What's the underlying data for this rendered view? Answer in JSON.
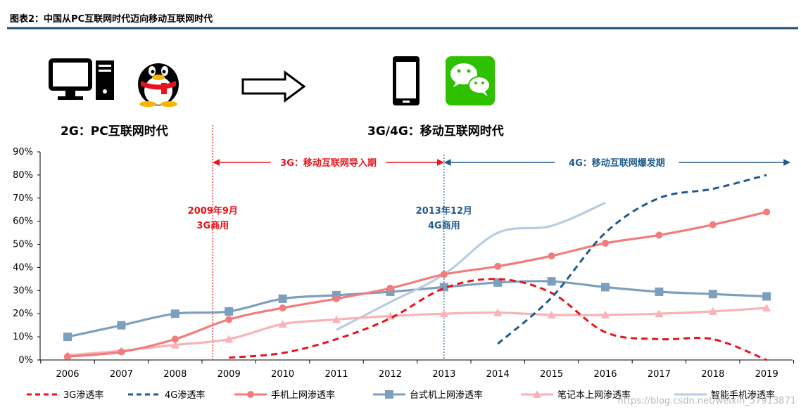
{
  "figure": {
    "title": "图表2：中国从PC互联网时代迈向移动互联网时代",
    "era_left_label": "2G：PC互联网时代",
    "era_right_label": "3G/4G：移动互联网时代",
    "icons": [
      "desktop-computer-icon",
      "qq-penguin-icon",
      "right-arrow-icon",
      "smartphone-icon",
      "wechat-icon"
    ],
    "watermark": "https://blog.csdn.net/weixin_57913871"
  },
  "colors": {
    "red": "#e8141c",
    "navy": "#1f5a8e",
    "salmon": "#f27c7c",
    "steel": "#7d9fbe",
    "pink": "#f9b3b6",
    "lightblue": "#b8cde0",
    "wechat_green": "#2dc100"
  },
  "chart_data": {
    "type": "line",
    "x": [
      "2006",
      "2007",
      "2008",
      "2009",
      "2010",
      "2011",
      "2012",
      "2013",
      "2014",
      "2015",
      "2016",
      "2017",
      "2018",
      "2019"
    ],
    "yticks": [
      "0%",
      "10%",
      "20%",
      "30%",
      "40%",
      "50%",
      "60%",
      "70%",
      "80%",
      "90%"
    ],
    "ylim": [
      0,
      90
    ],
    "grid": false,
    "legend_position": "bottom",
    "series": [
      {
        "name": "3G渗透率",
        "style": "dashed",
        "color": "#e8141c",
        "values": [
          null,
          null,
          null,
          1,
          3,
          9,
          18,
          31,
          35,
          29,
          12,
          9,
          9,
          0
        ]
      },
      {
        "name": "4G渗透率",
        "style": "dashed",
        "color": "#1f5a8e",
        "values": [
          null,
          null,
          null,
          null,
          null,
          null,
          null,
          null,
          7,
          27,
          55,
          70,
          74,
          80
        ]
      },
      {
        "name": "手机上网渗透率",
        "style": "solid",
        "marker": "circle",
        "color": "#f27c7c",
        "values": [
          1.5,
          3.5,
          9,
          17.5,
          22.5,
          26.5,
          31,
          37,
          40.5,
          45,
          50.5,
          54,
          58.5,
          64
        ]
      },
      {
        "name": "台式机上网渗透率",
        "style": "solid",
        "marker": "square",
        "color": "#7d9fbe",
        "values": [
          10,
          15,
          20,
          21,
          26.5,
          28,
          29.5,
          31.5,
          33.5,
          34,
          31.5,
          29.5,
          28.5,
          27.5
        ]
      },
      {
        "name": "笔记本上网渗透率",
        "style": "solid",
        "marker": "triangle",
        "color": "#f9b3b6",
        "values": [
          2,
          4,
          6.5,
          9,
          15.5,
          17.5,
          19,
          20,
          20.5,
          19.5,
          19.5,
          20,
          21,
          22.5
        ]
      },
      {
        "name": "智能手机渗透率",
        "style": "solid",
        "color": "#b8cde0",
        "values": [
          null,
          null,
          null,
          null,
          null,
          13,
          25,
          37,
          55,
          58,
          68,
          null,
          null,
          null
        ]
      }
    ],
    "phases": [
      {
        "label": "3G：移动互联网导入期",
        "from": "2009年9月",
        "to": "2013年12月",
        "color": "#e8141c"
      },
      {
        "label": "4G：移动互联网爆发期",
        "from": "2013年12月",
        "to": "2019",
        "color": "#1f5a8e"
      }
    ],
    "annotations": [
      {
        "lines": [
          "2009年9月",
          "3G商用"
        ],
        "color": "#e8141c"
      },
      {
        "lines": [
          "2013年12月",
          "4G商用"
        ],
        "color": "#1f5a8e"
      }
    ]
  }
}
